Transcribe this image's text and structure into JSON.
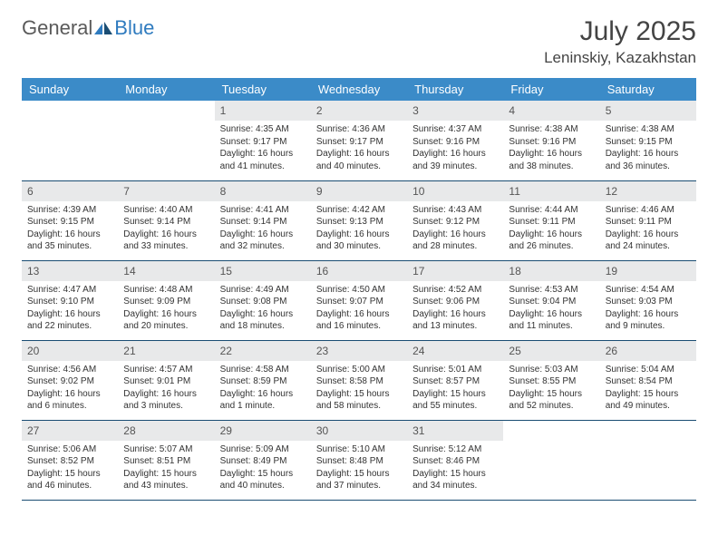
{
  "brand": {
    "part1": "General",
    "part2": "Blue"
  },
  "title": "July 2025",
  "location": "Leninskiy, Kazakhstan",
  "colors": {
    "header_bg": "#3b8bc8",
    "header_text": "#ffffff",
    "daynum_bg": "#e8e9ea",
    "row_border": "#1a4d73",
    "text": "#333333"
  },
  "layout": {
    "cell_fontsize_pt": 10,
    "daynum_fontsize_pt": 12,
    "header_fontsize_pt": 13
  },
  "weekdays": [
    "Sunday",
    "Monday",
    "Tuesday",
    "Wednesday",
    "Thursday",
    "Friday",
    "Saturday"
  ],
  "weeks": [
    [
      null,
      null,
      {
        "n": "1",
        "sunrise": "4:35 AM",
        "sunset": "9:17 PM",
        "daylight": "16 hours and 41 minutes."
      },
      {
        "n": "2",
        "sunrise": "4:36 AM",
        "sunset": "9:17 PM",
        "daylight": "16 hours and 40 minutes."
      },
      {
        "n": "3",
        "sunrise": "4:37 AM",
        "sunset": "9:16 PM",
        "daylight": "16 hours and 39 minutes."
      },
      {
        "n": "4",
        "sunrise": "4:38 AM",
        "sunset": "9:16 PM",
        "daylight": "16 hours and 38 minutes."
      },
      {
        "n": "5",
        "sunrise": "4:38 AM",
        "sunset": "9:15 PM",
        "daylight": "16 hours and 36 minutes."
      }
    ],
    [
      {
        "n": "6",
        "sunrise": "4:39 AM",
        "sunset": "9:15 PM",
        "daylight": "16 hours and 35 minutes."
      },
      {
        "n": "7",
        "sunrise": "4:40 AM",
        "sunset": "9:14 PM",
        "daylight": "16 hours and 33 minutes."
      },
      {
        "n": "8",
        "sunrise": "4:41 AM",
        "sunset": "9:14 PM",
        "daylight": "16 hours and 32 minutes."
      },
      {
        "n": "9",
        "sunrise": "4:42 AM",
        "sunset": "9:13 PM",
        "daylight": "16 hours and 30 minutes."
      },
      {
        "n": "10",
        "sunrise": "4:43 AM",
        "sunset": "9:12 PM",
        "daylight": "16 hours and 28 minutes."
      },
      {
        "n": "11",
        "sunrise": "4:44 AM",
        "sunset": "9:11 PM",
        "daylight": "16 hours and 26 minutes."
      },
      {
        "n": "12",
        "sunrise": "4:46 AM",
        "sunset": "9:11 PM",
        "daylight": "16 hours and 24 minutes."
      }
    ],
    [
      {
        "n": "13",
        "sunrise": "4:47 AM",
        "sunset": "9:10 PM",
        "daylight": "16 hours and 22 minutes."
      },
      {
        "n": "14",
        "sunrise": "4:48 AM",
        "sunset": "9:09 PM",
        "daylight": "16 hours and 20 minutes."
      },
      {
        "n": "15",
        "sunrise": "4:49 AM",
        "sunset": "9:08 PM",
        "daylight": "16 hours and 18 minutes."
      },
      {
        "n": "16",
        "sunrise": "4:50 AM",
        "sunset": "9:07 PM",
        "daylight": "16 hours and 16 minutes."
      },
      {
        "n": "17",
        "sunrise": "4:52 AM",
        "sunset": "9:06 PM",
        "daylight": "16 hours and 13 minutes."
      },
      {
        "n": "18",
        "sunrise": "4:53 AM",
        "sunset": "9:04 PM",
        "daylight": "16 hours and 11 minutes."
      },
      {
        "n": "19",
        "sunrise": "4:54 AM",
        "sunset": "9:03 PM",
        "daylight": "16 hours and 9 minutes."
      }
    ],
    [
      {
        "n": "20",
        "sunrise": "4:56 AM",
        "sunset": "9:02 PM",
        "daylight": "16 hours and 6 minutes."
      },
      {
        "n": "21",
        "sunrise": "4:57 AM",
        "sunset": "9:01 PM",
        "daylight": "16 hours and 3 minutes."
      },
      {
        "n": "22",
        "sunrise": "4:58 AM",
        "sunset": "8:59 PM",
        "daylight": "16 hours and 1 minute."
      },
      {
        "n": "23",
        "sunrise": "5:00 AM",
        "sunset": "8:58 PM",
        "daylight": "15 hours and 58 minutes."
      },
      {
        "n": "24",
        "sunrise": "5:01 AM",
        "sunset": "8:57 PM",
        "daylight": "15 hours and 55 minutes."
      },
      {
        "n": "25",
        "sunrise": "5:03 AM",
        "sunset": "8:55 PM",
        "daylight": "15 hours and 52 minutes."
      },
      {
        "n": "26",
        "sunrise": "5:04 AM",
        "sunset": "8:54 PM",
        "daylight": "15 hours and 49 minutes."
      }
    ],
    [
      {
        "n": "27",
        "sunrise": "5:06 AM",
        "sunset": "8:52 PM",
        "daylight": "15 hours and 46 minutes."
      },
      {
        "n": "28",
        "sunrise": "5:07 AM",
        "sunset": "8:51 PM",
        "daylight": "15 hours and 43 minutes."
      },
      {
        "n": "29",
        "sunrise": "5:09 AM",
        "sunset": "8:49 PM",
        "daylight": "15 hours and 40 minutes."
      },
      {
        "n": "30",
        "sunrise": "5:10 AM",
        "sunset": "8:48 PM",
        "daylight": "15 hours and 37 minutes."
      },
      {
        "n": "31",
        "sunrise": "5:12 AM",
        "sunset": "8:46 PM",
        "daylight": "15 hours and 34 minutes."
      },
      null,
      null
    ]
  ],
  "labels": {
    "sunrise": "Sunrise:",
    "sunset": "Sunset:",
    "daylight": "Daylight:"
  }
}
